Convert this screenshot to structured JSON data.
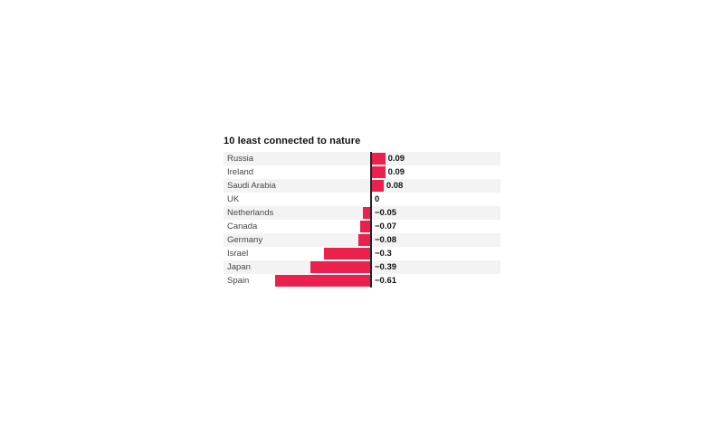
{
  "chart_data": {
    "type": "bar",
    "orientation": "horizontal",
    "title": "10 least connected to nature",
    "categories": [
      "Russia",
      "Ireland",
      "Saudi Arabia",
      "UK",
      "Netherlands",
      "Canada",
      "Germany",
      "Israel",
      "Japan",
      "Spain"
    ],
    "values": [
      0.09,
      0.09,
      0.08,
      0,
      -0.05,
      -0.07,
      -0.08,
      -0.3,
      -0.39,
      -0.61
    ],
    "value_labels": [
      "0.09",
      "0.09",
      "0.08",
      "0",
      "−0.05",
      "−0.07",
      "−0.08",
      "−0.3",
      "−0.39",
      "−0.61"
    ],
    "xlim": [
      -0.94,
      0.83
    ],
    "grid": false,
    "legend": false,
    "zero_axis": true,
    "row_striping": "alternating, first row shaded",
    "colors": {
      "bar": "#eb204d",
      "row_alt_background": "#f4f3f4",
      "row_background": "#ffffff",
      "axis_line": "#262626",
      "title_text": "#111111",
      "category_text": "#474747",
      "value_text": "#131313",
      "page_background": "#ffffff"
    }
  }
}
